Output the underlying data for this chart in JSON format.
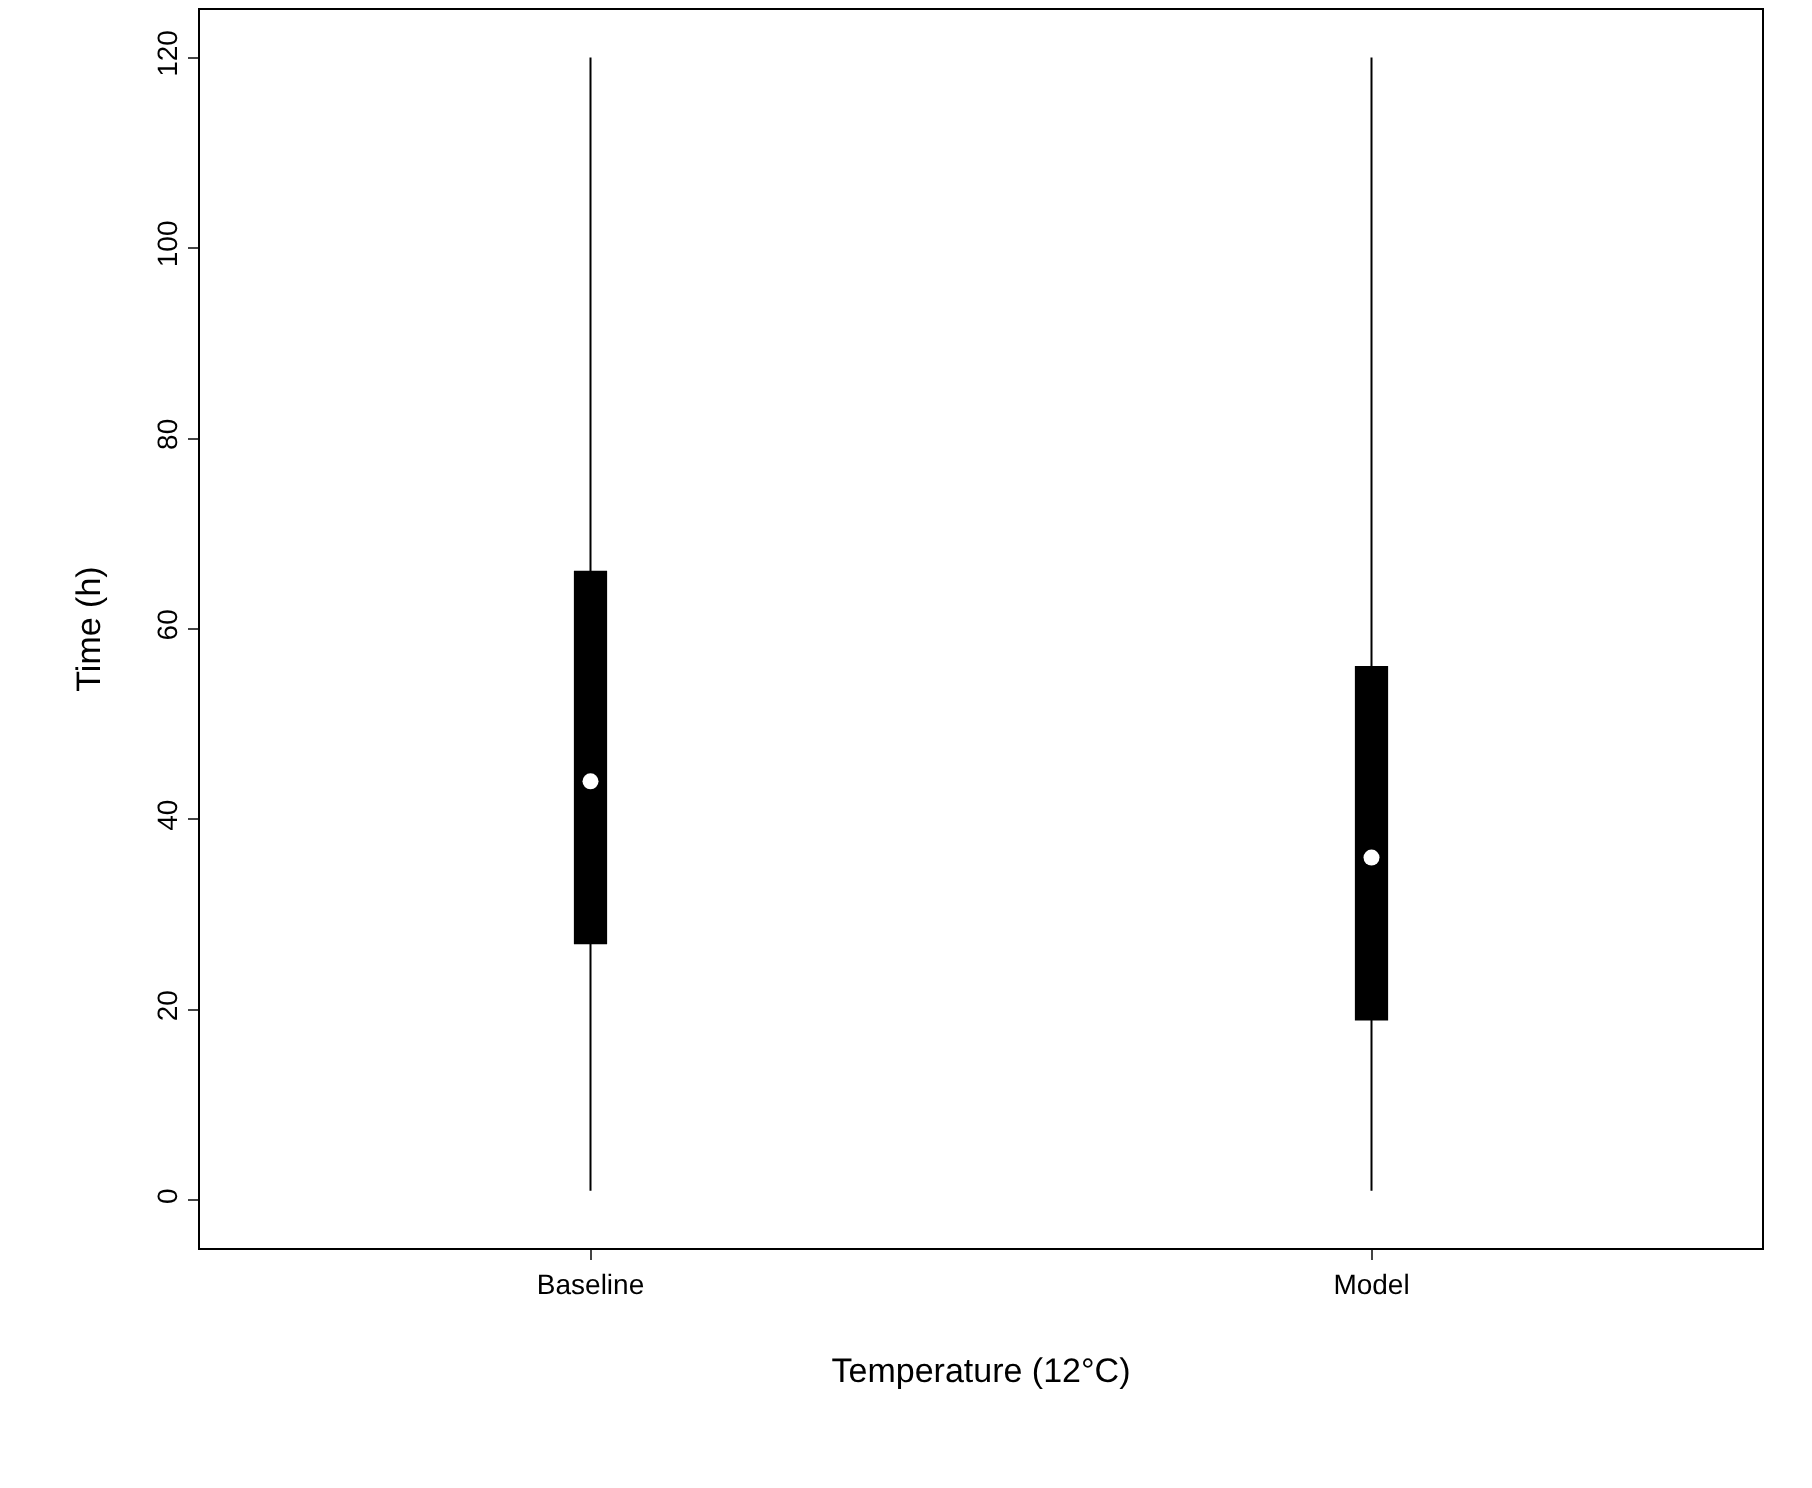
{
  "chart_data": {
    "type": "box",
    "xlabel": "Temperature (12°C)",
    "ylabel": "Time (h)",
    "categories": [
      "Baseline",
      "Model"
    ],
    "boxes": [
      {
        "low": 1,
        "q1": 27,
        "median": 44,
        "q3": 66,
        "high": 120
      },
      {
        "low": 1,
        "q1": 19,
        "median": 36,
        "q3": 56,
        "high": 120
      }
    ],
    "color": "#000000",
    "series": [
      {
        "type": "scatter",
        "x": [
          "Baseline",
          "Model"
        ],
        "values": [
          44,
          36
        ],
        "color": "#ffffff"
      }
    ],
    "marker": "circle",
    "ylim": [
      -5,
      125
    ],
    "yticks": [
      0,
      20,
      40,
      60,
      80,
      100,
      120
    ],
    "grid": false
  }
}
